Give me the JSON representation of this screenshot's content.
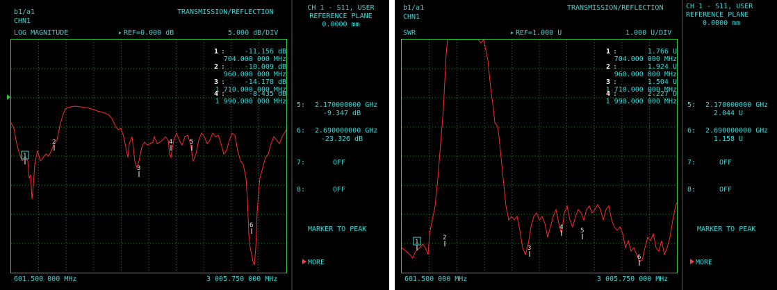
{
  "left": {
    "ratio": "b1/a1",
    "channel": "CHN1",
    "title": "TRANSMISSION/REFLECTION",
    "format": "LOG MAGNITUDE",
    "ref": "REF=0.000 dB",
    "scale": "5.000 dB/DIV",
    "start": "601.500 000 MHz",
    "stop": "3 005.750 000 MHz",
    "markers": [
      {
        "num": "1",
        "value": "-11.156 dB",
        "freq": "704.000 000 MHz"
      },
      {
        "num": "2",
        "value": "-10.009 dB",
        "freq": "960.000 000 MHz"
      },
      {
        "num": "3",
        "value": "-14.178 dB",
        "freq": "1 710.000 000 MHz"
      },
      {
        "num": "4",
        "value": "-8.435 dB",
        "freq": "1 990.000 000 MHz"
      }
    ],
    "trace_markers": [
      "1",
      "2",
      "3",
      "4",
      "5",
      "6"
    ],
    "trace_color": "#ff2a2a"
  },
  "left_side": {
    "header1": "CH 1 - S11, USER",
    "header2": "REFERENCE PLANE",
    "header3": "0.0000 mm",
    "m5_label": "5:",
    "m5_freq": "2.170000000 GHz",
    "m5_value": "-9.347 dB",
    "m6_label": "6:",
    "m6_freq": "2.690000000 GHz",
    "m6_value": "-23.326 dB",
    "m7_label": "7:",
    "m7_value": "OFF",
    "m8_label": "8:",
    "m8_value": "OFF",
    "marker_to_peak": "MARKER TO PEAK",
    "more": "MORE"
  },
  "right": {
    "ratio": "b1/a1",
    "channel": "CHN1",
    "title": "TRANSMISSION/REFLECTION",
    "format": "SWR",
    "ref": "REF=1.000 U",
    "scale": "1.000 U/DIV",
    "start": "601.500 000 MHz",
    "stop": "3 005.750 000 MHz",
    "markers": [
      {
        "num": "1",
        "value": "1.766 U",
        "freq": "704.000 000 MHz"
      },
      {
        "num": "2",
        "value": "1.924 U",
        "freq": "960.000 000 MHz"
      },
      {
        "num": "3",
        "value": "1.504 U",
        "freq": "1 710.000 000 MHz"
      },
      {
        "num": "4",
        "value": "2.227 U",
        "freq": "1 990.000 000 MHz"
      }
    ],
    "trace_markers": [
      "1",
      "2",
      "3",
      "4",
      "5",
      "6"
    ],
    "trace_color": "#ff2a2a"
  },
  "right_side": {
    "header1": "CH 1 - S11, USER",
    "header2": "REFERENCE PLANE",
    "header3": "0.0000 mm",
    "m5_label": "5:",
    "m5_freq": "2.170000000 GHz",
    "m5_value": "2.044 U",
    "m6_label": "6:",
    "m6_freq": "2.690000000 GHz",
    "m6_value": "1.158 U",
    "m7_label": "7:",
    "m7_value": "OFF",
    "m8_label": "8:",
    "m8_value": "OFF",
    "marker_to_peak": "MARKER TO PEAK",
    "more": "MORE"
  }
}
